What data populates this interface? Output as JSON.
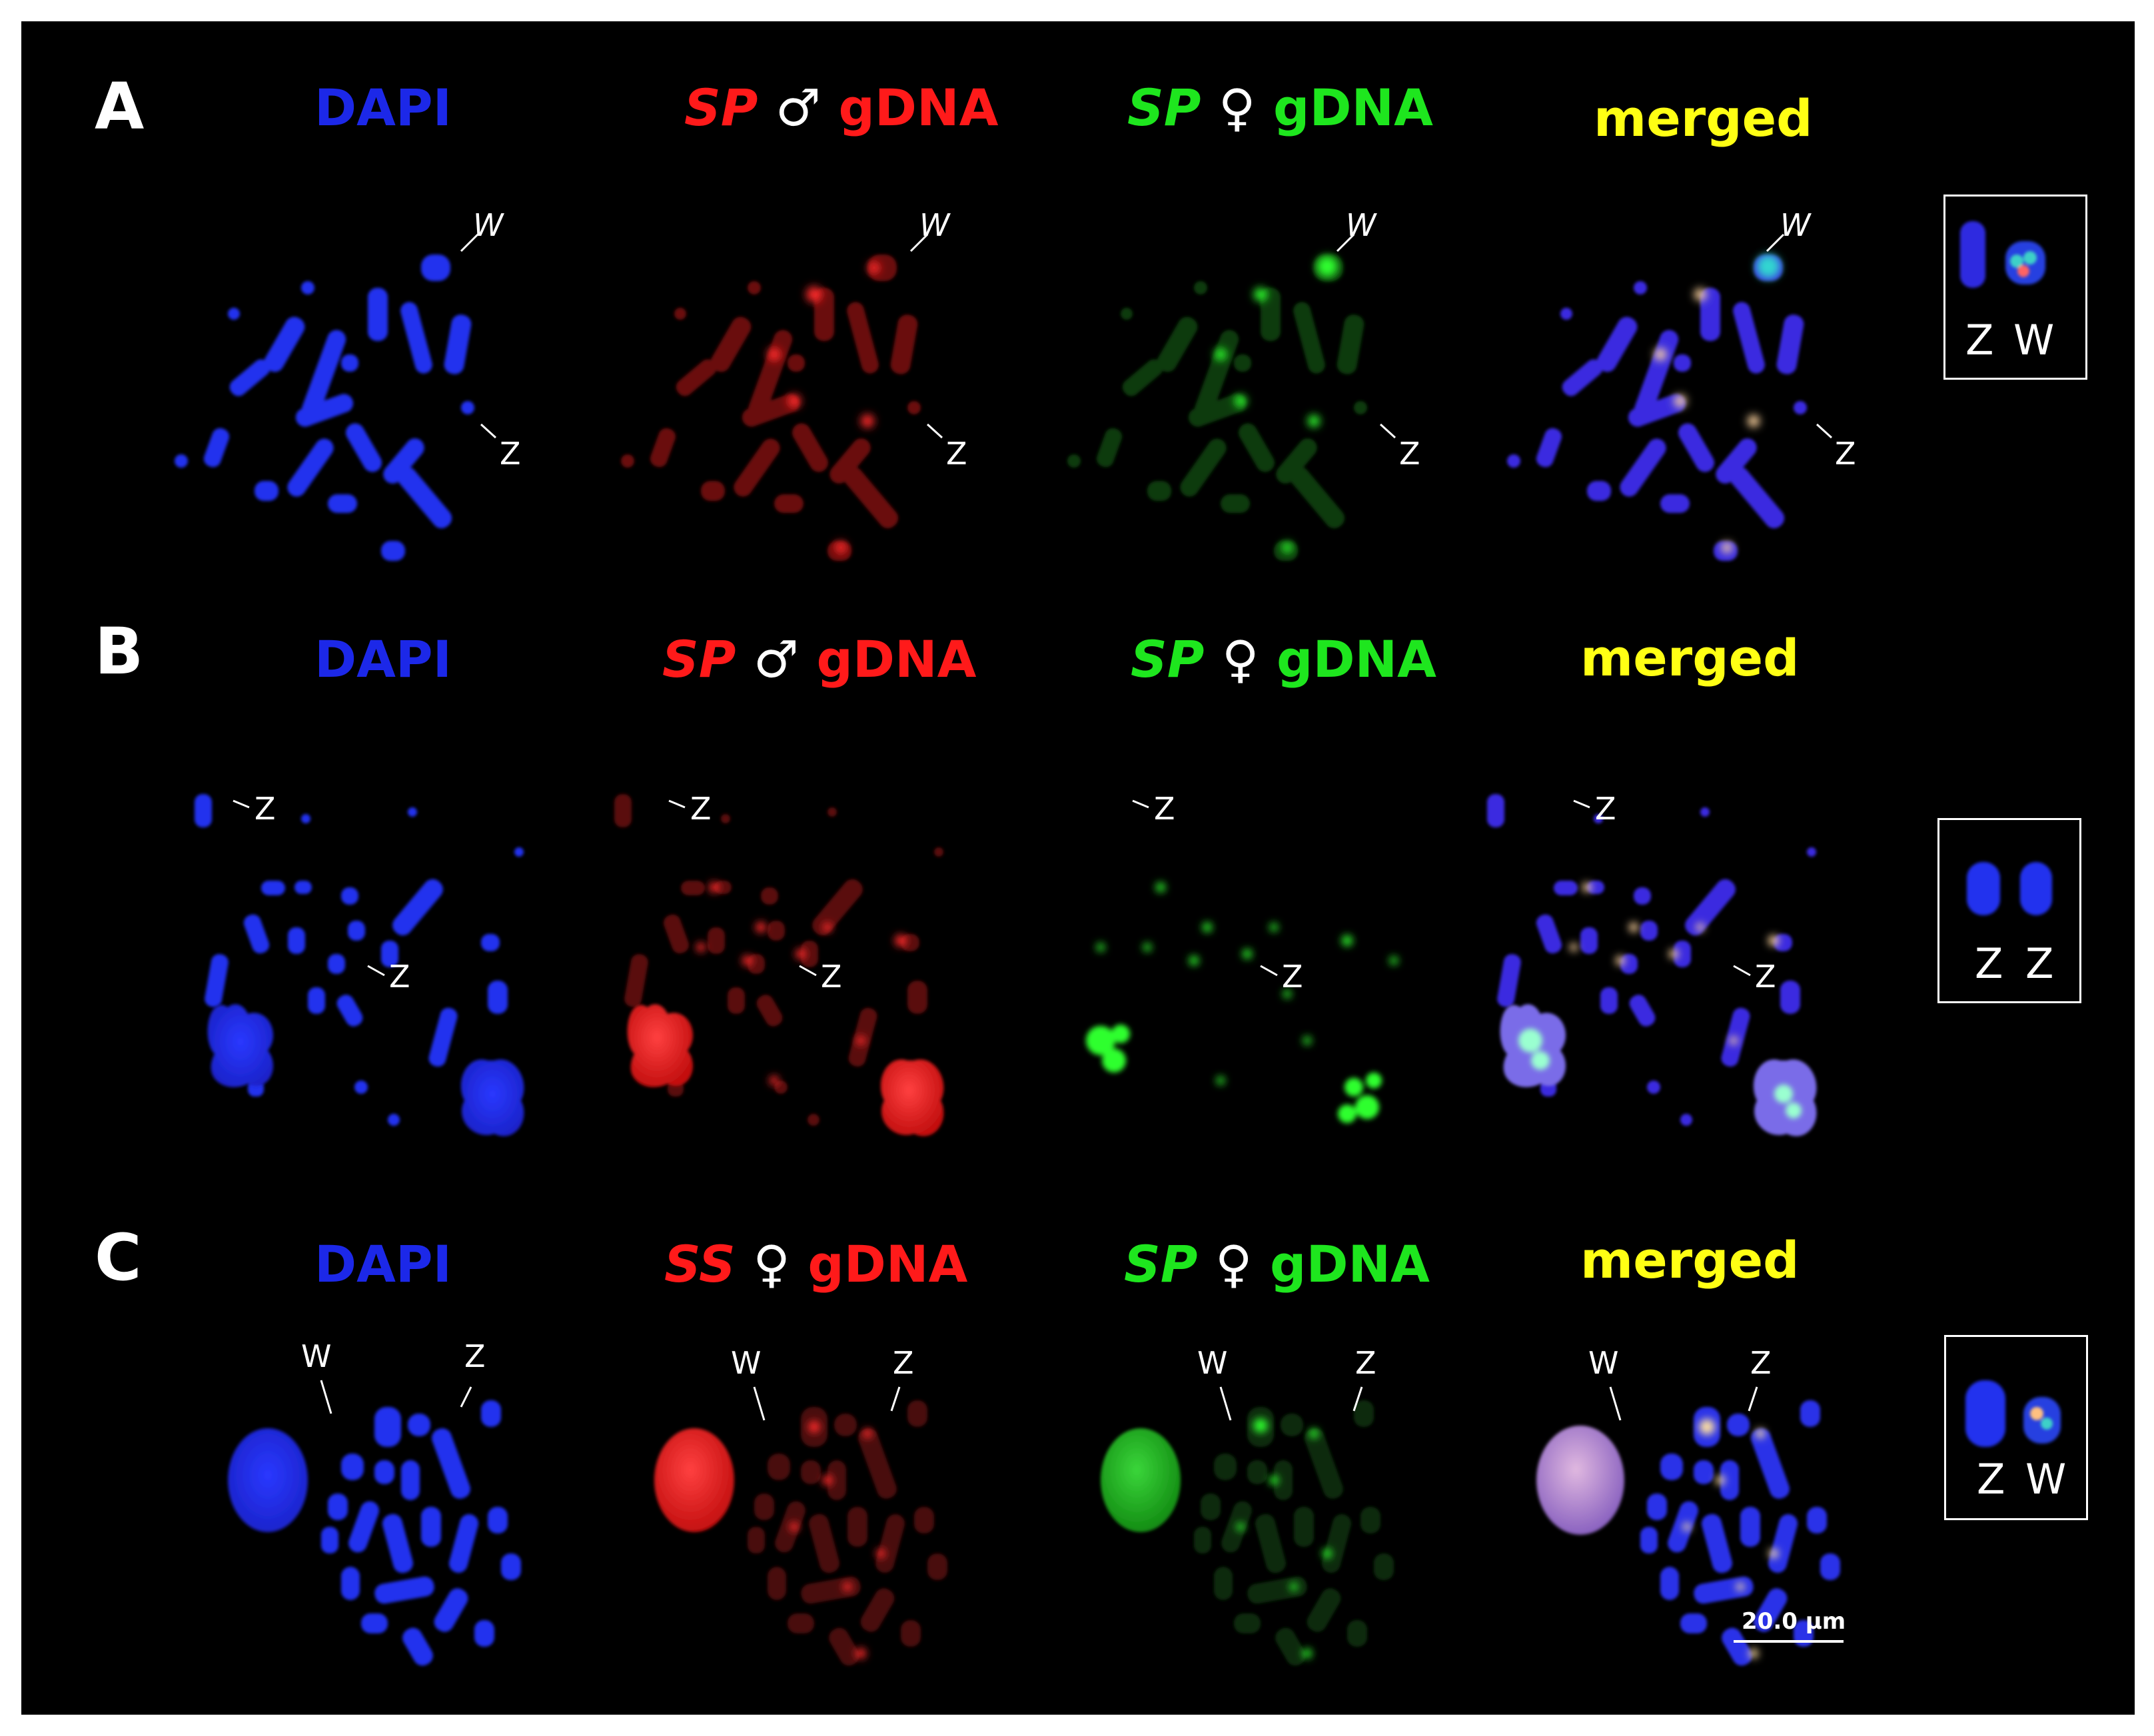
{
  "panels": [
    {
      "letter": "A",
      "headers": {
        "dapi": "DAPI",
        "probe1_species": "SP",
        "probe1_sex": "♂",
        "probe1_suffix": "gDNA",
        "probe2_species": "SP",
        "probe2_sex": "♀",
        "probe2_suffix": "gDNA",
        "merged": "merged"
      },
      "chromosome_labels": [
        "W",
        "Z"
      ],
      "inset_labels": [
        "Z",
        "W"
      ]
    },
    {
      "letter": "B",
      "headers": {
        "dapi": "DAPI",
        "probe1_species": "SP",
        "probe1_sex": "♂",
        "probe1_suffix": "gDNA",
        "probe2_species": "SP",
        "probe2_sex": "♀",
        "probe2_suffix": "gDNA",
        "merged": "merged"
      },
      "chromosome_labels": [
        "Z",
        "Z"
      ],
      "inset_labels": [
        "Z",
        "Z"
      ]
    },
    {
      "letter": "C",
      "headers": {
        "dapi": "DAPI",
        "probe1_species": "SS",
        "probe1_sex": "♀",
        "probe1_suffix": "gDNA",
        "probe2_species": "SP",
        "probe2_sex": "♀",
        "probe2_suffix": "gDNA",
        "merged": "merged"
      },
      "chromosome_labels": [
        "W",
        "Z"
      ],
      "inset_labels": [
        "Z",
        "W"
      ]
    }
  ],
  "scale_bar": "20.0 µm",
  "colors": {
    "dapi": "#1c28e8",
    "probe_red": "#ff1a1a",
    "probe_green": "#1ee61e",
    "merged": "#ffff14",
    "background": "#000000"
  }
}
